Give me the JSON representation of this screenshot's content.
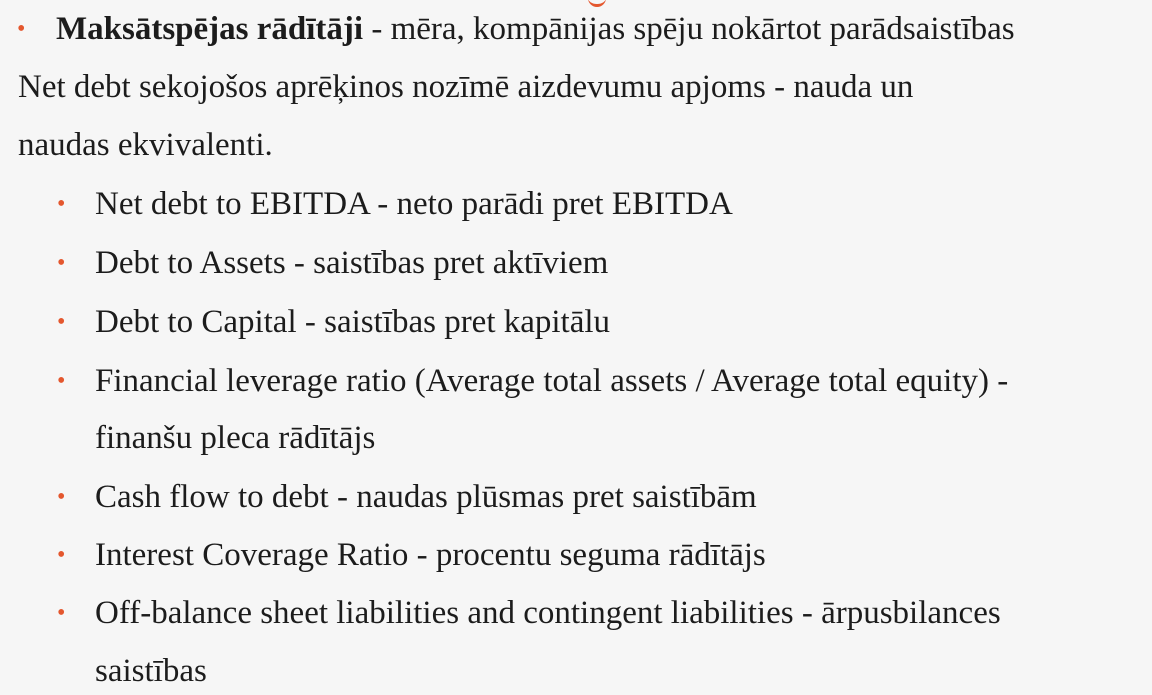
{
  "heading": {
    "term": "Maksātspējas rādītāji",
    "rest": " - mēra, kompānijas spēju nokārtot parādsaistības"
  },
  "paragraph": {
    "line1": "Net debt sekojošos aprēķinos nozīmē aizdevumu apjoms - nauda un",
    "line2": "naudas ekvivalenti."
  },
  "items": [
    {
      "line1": "Net debt to EBITDA - neto parādi pret EBITDA"
    },
    {
      "line1": "Debt to Assets - saistības pret aktīviem"
    },
    {
      "line1": "Debt to Capital - saistības pret kapitālu"
    },
    {
      "line1": "Financial leverage ratio (Average total assets / Average total equity) -",
      "line2": "finanšu pleca rādītājs"
    },
    {
      "line1": "Cash flow to debt - naudas plūsmas pret saistībām"
    },
    {
      "line1": "Interest Coverage Ratio - procentu seguma rādītājs"
    },
    {
      "line1": "Off-balance sheet liabilities and contingent liabilities - ārpusbilances",
      "line2": "saistības"
    }
  ],
  "bullet_glyph": "•",
  "colors": {
    "bullet": "#e4572e",
    "text": "#1c1c1c",
    "background": "#f6f6f6"
  }
}
